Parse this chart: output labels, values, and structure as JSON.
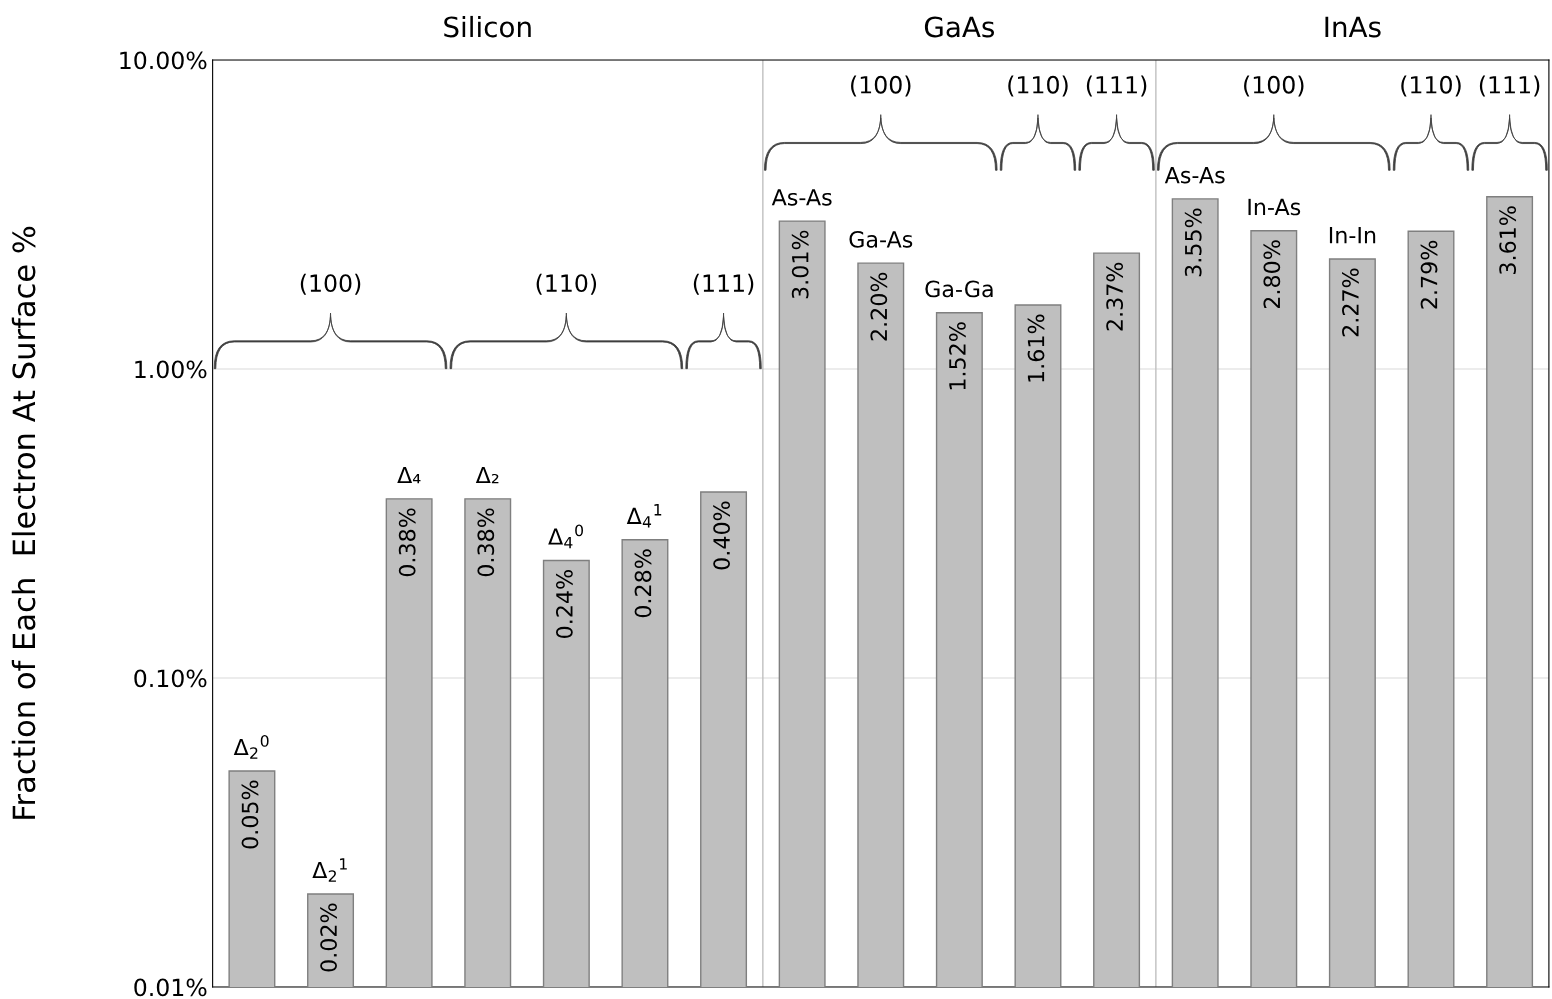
{
  "chart_data": {
    "type": "bar",
    "ylabel": "Fraction of Each  Electron At Surface %",
    "categories": [
      "Δ$_{2}$$^{0}$",
      "Δ$_{2}$$^{1}$",
      "Δ₄",
      "Δ₂",
      "Δ$_{4}$$^{0}$",
      "Δ$_{4}$$^{1}$",
      null,
      "As-As",
      "Ga-As",
      "Ga-Ga",
      null,
      null,
      "As-As",
      "In-As",
      "In-In",
      null,
      null
    ],
    "values": [
      0.05,
      0.02,
      0.38,
      0.38,
      0.24,
      0.28,
      0.4,
      3.01,
      2.2,
      1.52,
      1.61,
      2.37,
      3.55,
      2.8,
      2.27,
      2.79,
      3.61
    ],
    "value_labels": [
      "0.05%",
      "0.02%",
      "0.38%",
      "0.38%",
      "0.24%",
      "0.28%",
      "0.40%",
      "3.01%",
      "2.20%",
      "1.52%",
      "1.61%",
      "2.37%",
      "3.55%",
      "2.80%",
      "2.27%",
      "2.79%",
      "3.61%"
    ],
    "color": "#bfbfbf",
    "log": true,
    "ylim": [
      0.01,
      10
    ],
    "yticks": [
      {
        "value": 0.01,
        "label": "0.01%"
      },
      {
        "value": 0.1,
        "label": "0.10%"
      },
      {
        "value": 1,
        "label": "1.00%"
      },
      {
        "value": 10,
        "label": "10.00%"
      }
    ],
    "grid": "y",
    "annotations": [
      "Silicon",
      "GaAs",
      "InAs",
      "(100)",
      "(110)",
      "(111)",
      "(100)",
      "(110)",
      "(111)",
      "(100)",
      "(110)",
      "(111)"
    ]
  }
}
